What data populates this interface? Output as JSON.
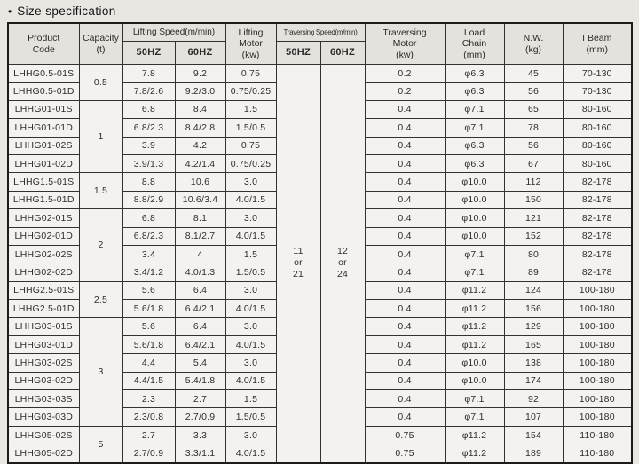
{
  "page": {
    "bullet": "•",
    "title": "Size specification"
  },
  "colors": {
    "page_bg": "#e9e7e2",
    "cell_bg": "#f3f2ee",
    "header_bg": "#e4e2dd",
    "border": "#33322f",
    "text": "#2c2b28"
  },
  "table": {
    "headers": {
      "product_code": "Product\nCode",
      "capacity": "Capacity\n(t)",
      "lifting_speed_group": "Lifting Speed(m/min)",
      "traversing_speed_group": "Traversing Speed(m/min)",
      "hz50": "50HZ",
      "hz60": "60HZ",
      "lifting_motor": "Lifting\nMotor\n(kw)",
      "traversing_motor": "Traversing\nMotor\n(kw)",
      "load_chain": "Load\nChain\n(mm)",
      "nw": "N.W.\n(kg)",
      "i_beam": "I Beam\n(mm)"
    },
    "traversing_speed": {
      "hz50_lines": [
        "11",
        "or",
        "21"
      ],
      "hz60_lines": [
        "12",
        "or",
        "24"
      ]
    },
    "capacity_groups": [
      {
        "value": "0.5",
        "span": 2
      },
      {
        "value": "1",
        "span": 4
      },
      {
        "value": "1.5",
        "span": 2
      },
      {
        "value": "2",
        "span": 4
      },
      {
        "value": "2.5",
        "span": 2
      },
      {
        "value": "3",
        "span": 6
      },
      {
        "value": "5",
        "span": 2
      }
    ],
    "rows": [
      {
        "code": "LHHG0.5-01S",
        "lift_50hz": "7.8",
        "lift_60hz": "9.2",
        "lifting_motor": "0.75",
        "traversing_motor": "0.2",
        "load_chain": "φ6.3",
        "nw": "45",
        "i_beam": "70-130"
      },
      {
        "code": "LHHG0.5-01D",
        "lift_50hz": "7.8/2.6",
        "lift_60hz": "9.2/3.0",
        "lifting_motor": "0.75/0.25",
        "traversing_motor": "0.2",
        "load_chain": "φ6.3",
        "nw": "56",
        "i_beam": "70-130"
      },
      {
        "code": "LHHG01-01S",
        "lift_50hz": "6.8",
        "lift_60hz": "8.4",
        "lifting_motor": "1.5",
        "traversing_motor": "0.4",
        "load_chain": "φ7.1",
        "nw": "65",
        "i_beam": "80-160"
      },
      {
        "code": "LHHG01-01D",
        "lift_50hz": "6.8/2.3",
        "lift_60hz": "8.4/2.8",
        "lifting_motor": "1.5/0.5",
        "traversing_motor": "0.4",
        "load_chain": "φ7.1",
        "nw": "78",
        "i_beam": "80-160"
      },
      {
        "code": "LHHG01-02S",
        "lift_50hz": "3.9",
        "lift_60hz": "4.2",
        "lifting_motor": "0.75",
        "traversing_motor": "0.4",
        "load_chain": "φ6.3",
        "nw": "56",
        "i_beam": "80-160"
      },
      {
        "code": "LHHG01-02D",
        "lift_50hz": "3.9/1.3",
        "lift_60hz": "4.2/1.4",
        "lifting_motor": "0.75/0.25",
        "traversing_motor": "0.4",
        "load_chain": "φ6.3",
        "nw": "67",
        "i_beam": "80-160"
      },
      {
        "code": "LHHG1.5-01S",
        "lift_50hz": "8.8",
        "lift_60hz": "10.6",
        "lifting_motor": "3.0",
        "traversing_motor": "0.4",
        "load_chain": "φ10.0",
        "nw": "112",
        "i_beam": "82-178"
      },
      {
        "code": "LHHG1.5-01D",
        "lift_50hz": "8.8/2.9",
        "lift_60hz": "10.6/3.4",
        "lifting_motor": "4.0/1.5",
        "traversing_motor": "0.4",
        "load_chain": "φ10.0",
        "nw": "150",
        "i_beam": "82-178"
      },
      {
        "code": "LHHG02-01S",
        "lift_50hz": "6.8",
        "lift_60hz": "8.1",
        "lifting_motor": "3.0",
        "traversing_motor": "0.4",
        "load_chain": "φ10.0",
        "nw": "121",
        "i_beam": "82-178"
      },
      {
        "code": "LHHG02-01D",
        "lift_50hz": "6.8/2.3",
        "lift_60hz": "8.1/2.7",
        "lifting_motor": "4.0/1.5",
        "traversing_motor": "0.4",
        "load_chain": "φ10.0",
        "nw": "152",
        "i_beam": "82-178"
      },
      {
        "code": "LHHG02-02S",
        "lift_50hz": "3.4",
        "lift_60hz": "4",
        "lifting_motor": "1.5",
        "traversing_motor": "0.4",
        "load_chain": "φ7.1",
        "nw": "80",
        "i_beam": "82-178"
      },
      {
        "code": "LHHG02-02D",
        "lift_50hz": "3.4/1.2",
        "lift_60hz": "4.0/1.3",
        "lifting_motor": "1.5/0.5",
        "traversing_motor": "0.4",
        "load_chain": "φ7.1",
        "nw": "89",
        "i_beam": "82-178"
      },
      {
        "code": "LHHG2.5-01S",
        "lift_50hz": "5.6",
        "lift_60hz": "6.4",
        "lifting_motor": "3.0",
        "traversing_motor": "0.4",
        "load_chain": "φ11.2",
        "nw": "124",
        "i_beam": "100-180"
      },
      {
        "code": "LHHG2.5-01D",
        "lift_50hz": "5.6/1.8",
        "lift_60hz": "6.4/2.1",
        "lifting_motor": "4.0/1.5",
        "traversing_motor": "0.4",
        "load_chain": "φ11.2",
        "nw": "156",
        "i_beam": "100-180"
      },
      {
        "code": "LHHG03-01S",
        "lift_50hz": "5.6",
        "lift_60hz": "6.4",
        "lifting_motor": "3.0",
        "traversing_motor": "0.4",
        "load_chain": "φ11.2",
        "nw": "129",
        "i_beam": "100-180"
      },
      {
        "code": "LHHG03-01D",
        "lift_50hz": "5.6/1.8",
        "lift_60hz": "6.4/2.1",
        "lifting_motor": "4.0/1.5",
        "traversing_motor": "0.4",
        "load_chain": "φ11.2",
        "nw": "165",
        "i_beam": "100-180"
      },
      {
        "code": "LHHG03-02S",
        "lift_50hz": "4.4",
        "lift_60hz": "5.4",
        "lifting_motor": "3.0",
        "traversing_motor": "0.4",
        "load_chain": "φ10.0",
        "nw": "138",
        "i_beam": "100-180"
      },
      {
        "code": "LHHG03-02D",
        "lift_50hz": "4.4/1.5",
        "lift_60hz": "5.4/1.8",
        "lifting_motor": "4.0/1.5",
        "traversing_motor": "0.4",
        "load_chain": "φ10.0",
        "nw": "174",
        "i_beam": "100-180"
      },
      {
        "code": "LHHG03-03S",
        "lift_50hz": "2.3",
        "lift_60hz": "2.7",
        "lifting_motor": "1.5",
        "traversing_motor": "0.4",
        "load_chain": "φ7.1",
        "nw": "92",
        "i_beam": "100-180"
      },
      {
        "code": "LHHG03-03D",
        "lift_50hz": "2.3/0.8",
        "lift_60hz": "2.7/0.9",
        "lifting_motor": "1.5/0.5",
        "traversing_motor": "0.4",
        "load_chain": "φ7.1",
        "nw": "107",
        "i_beam": "100-180"
      },
      {
        "code": "LHHG05-02S",
        "lift_50hz": "2.7",
        "lift_60hz": "3.3",
        "lifting_motor": "3.0",
        "traversing_motor": "0.75",
        "load_chain": "φ11.2",
        "nw": "154",
        "i_beam": "110-180"
      },
      {
        "code": "LHHG05-02D",
        "lift_50hz": "2.7/0.9",
        "lift_60hz": "3.3/1.1",
        "lifting_motor": "4.0/1.5",
        "traversing_motor": "0.75",
        "load_chain": "φ11.2",
        "nw": "189",
        "i_beam": "110-180"
      }
    ]
  }
}
